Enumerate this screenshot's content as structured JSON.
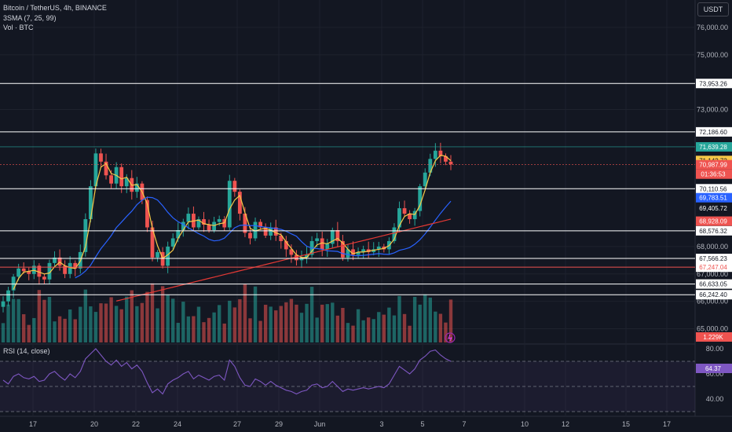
{
  "header": {
    "title": "Bitcoin / TetherUS, 4h, BINANCE",
    "indicator": "3SMA (7, 25, 99)",
    "volume_label": "Vol · BTC",
    "currency_button": "USDT"
  },
  "colors": {
    "background": "#131722",
    "up": "#26a69a",
    "down": "#ef5350",
    "sma7": "#f7c948",
    "sma25": "#2962ff",
    "sma99": "#e53935",
    "rsi_line": "#7e57c2",
    "grid": "#1e222d",
    "axis_text": "#b2b5be"
  },
  "chart_data": {
    "type": "candlestick",
    "price_axis": {
      "range": [
        64500,
        77000
      ],
      "ticks": [
        "76,000.00",
        "75,000.00",
        "73,000.00",
        "68,000.00",
        "67,000.00",
        "66,000.00",
        "65,000.00"
      ]
    },
    "x_axis": {
      "ticks": [
        "17",
        "20",
        "22",
        "24",
        "27",
        "29",
        "Jun",
        "3",
        "5",
        "7",
        "10",
        "12",
        "15",
        "17"
      ]
    },
    "horizontal_levels": [
      {
        "label": "73,953.26",
        "color": "#ffffff"
      },
      {
        "label": "72,186.60",
        "color": "#ffffff"
      },
      {
        "label": "70,110.56",
        "color": "#ffffff"
      },
      {
        "label": "68,576.32",
        "color": "#ffffff"
      },
      {
        "label": "67,566.23",
        "color": "#ffffff"
      },
      {
        "label": "67,247.04",
        "color": "#ef5350"
      },
      {
        "label": "66,633.05",
        "color": "#ffffff"
      },
      {
        "label": "66,242.40",
        "color": "#ffffff"
      }
    ],
    "price_tags": [
      {
        "label": "71,639.28",
        "bg": "#26a69a",
        "fg": "#ffffff"
      },
      {
        "label": "71,142.73",
        "bg": "#f7c948",
        "fg": "#131722"
      },
      {
        "label": "70,987.99",
        "bg": "#ef5350",
        "fg": "#ffffff"
      },
      {
        "label": "01:36:53",
        "bg": "#ef5350",
        "fg": "#ffffff"
      },
      {
        "label": "69,783.51",
        "bg": "#2962ff",
        "fg": "#ffffff"
      },
      {
        "label": "69,405.72",
        "bg": "#131722",
        "fg": "#ffffff"
      },
      {
        "label": "68,928.09",
        "bg": "#ef5350",
        "fg": "#ffffff"
      }
    ],
    "volume_tag": {
      "label": "1.229K",
      "bg": "#ef5350",
      "fg": "#ffffff"
    },
    "close_series": [
      66000,
      66400,
      66900,
      67200,
      67100,
      67000,
      67300,
      66900,
      66800,
      67400,
      67600,
      67300,
      67000,
      67400,
      67200,
      67800,
      69000,
      70200,
      71400,
      71100,
      70600,
      70300,
      70900,
      70200,
      70500,
      70000,
      70300,
      69700,
      68700,
      67600,
      67800,
      67300,
      68000,
      68300,
      68600,
      68900,
      69200,
      68700,
      69000,
      68800,
      68600,
      68900,
      69000,
      68700,
      70400,
      70000,
      69200,
      68500,
      68300,
      68900,
      68700,
      68400,
      68700,
      68400,
      68200,
      67900,
      67700,
      67500,
      67600,
      67700,
      68200,
      68300,
      67900,
      68100,
      68600,
      68200,
      67600,
      67900,
      67700,
      67800,
      67900,
      67800,
      67900,
      68000,
      67900,
      68200,
      68700,
      69400,
      69200,
      69000,
      69300,
      70200,
      70700,
      71200,
      71500,
      71300,
      71100,
      71000
    ],
    "volume_bars": 88,
    "rsi": {
      "label": "RSI (14, close)",
      "range": [
        30,
        80
      ],
      "ticks": [
        "80.00",
        "60.00",
        "40.00"
      ],
      "current_label": "64.37",
      "values": [
        55,
        52,
        58,
        60,
        57,
        56,
        58,
        54,
        55,
        60,
        62,
        58,
        55,
        60,
        57,
        62,
        72,
        76,
        80,
        75,
        70,
        67,
        71,
        66,
        69,
        64,
        67,
        62,
        53,
        45,
        48,
        44,
        52,
        55,
        57,
        60,
        62,
        56,
        59,
        57,
        55,
        58,
        59,
        55,
        71,
        66,
        57,
        51,
        50,
        56,
        54,
        51,
        54,
        51,
        49,
        47,
        46,
        44,
        46,
        47,
        51,
        52,
        49,
        50,
        54,
        50,
        46,
        48,
        47,
        48,
        49,
        48,
        49,
        50,
        49,
        52,
        59,
        66,
        63,
        60,
        64,
        71,
        74,
        78,
        79,
        75,
        72,
        70
      ]
    }
  }
}
